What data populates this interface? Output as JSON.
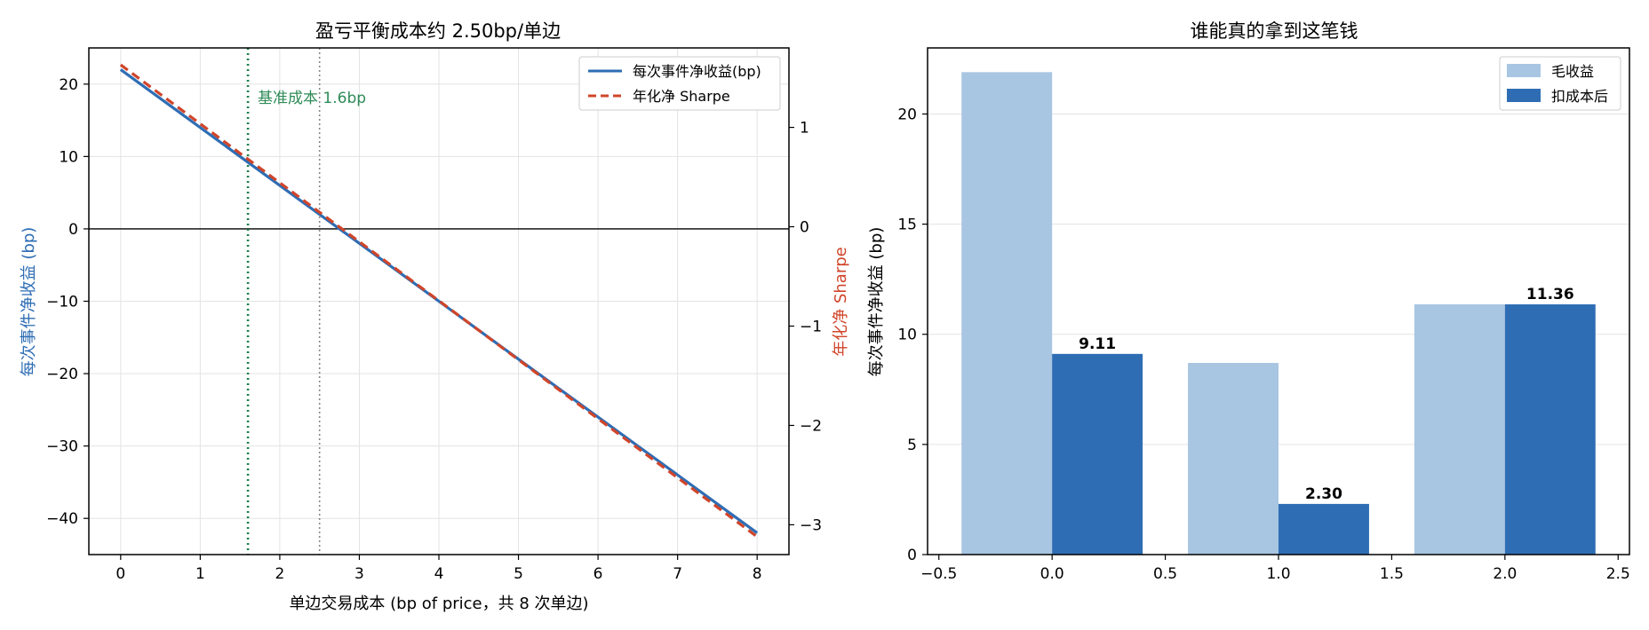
{
  "chart_data": [
    {
      "type": "line",
      "title": "盈亏平衡成本约 2.50bp/单边",
      "xlabel": "单边交易成本 (bp of price，共 8 次单边)",
      "ylabel": "每次事件净收益 (bp)",
      "y2label": "年化净 Sharpe",
      "xlim": [
        -0.4,
        8.4
      ],
      "ylim": [
        -45,
        25
      ],
      "y2lim": [
        -3.3,
        1.8
      ],
      "xticks": [
        0,
        1,
        2,
        3,
        4,
        5,
        6,
        7,
        8
      ],
      "yticks": [
        20,
        10,
        0,
        -10,
        -20,
        -30,
        -40
      ],
      "y2ticks": [
        1,
        0,
        -1,
        -2,
        -3
      ],
      "grid": true,
      "legend_position": "top-right",
      "series": [
        {
          "name": "每次事件净收益(bp)",
          "axis": "left",
          "style": "solid",
          "color": "#2e6db4",
          "x": [
            0,
            8
          ],
          "y": [
            22,
            -42
          ]
        },
        {
          "name": "年化净 Sharpe",
          "axis": "right",
          "style": "dashed",
          "color": "#d0452a",
          "x": [
            0,
            8
          ],
          "y": [
            1.63,
            -3.12
          ]
        }
      ],
      "vlines": [
        {
          "x": 1.6,
          "color": "#1a7f4b",
          "style": "dotted",
          "label": "基准成本 1.6bp"
        },
        {
          "x": 2.5,
          "color": "#888888",
          "style": "dotted",
          "label": ""
        }
      ],
      "hline": {
        "y": 0,
        "color": "#000000"
      }
    },
    {
      "type": "bar",
      "title": "谁能真的拿到这笔钱",
      "xlabel": "",
      "ylabel": "每次事件净收益 (bp)",
      "xlim": [
        -0.55,
        2.55
      ],
      "ylim": [
        0,
        23
      ],
      "xticks": [
        -0.5,
        0.0,
        0.5,
        1.0,
        1.5,
        2.0,
        2.5
      ],
      "yticks": [
        0,
        5,
        10,
        15,
        20
      ],
      "grid": true,
      "legend_position": "top-right",
      "series": [
        {
          "name": "毛收益",
          "color": "#a8c5e2",
          "x": [
            -0.2,
            0.8,
            1.8
          ],
          "values": [
            21.9,
            8.7,
            11.36
          ],
          "labels": [
            "",
            "",
            ""
          ]
        },
        {
          "name": "扣成本后",
          "color": "#2e6db4",
          "x": [
            0.2,
            1.2,
            2.2
          ],
          "values": [
            9.11,
            2.3,
            11.36
          ],
          "labels": [
            "9.11",
            "2.30",
            "11.36"
          ]
        }
      ],
      "bar_width": 0.4
    }
  ]
}
